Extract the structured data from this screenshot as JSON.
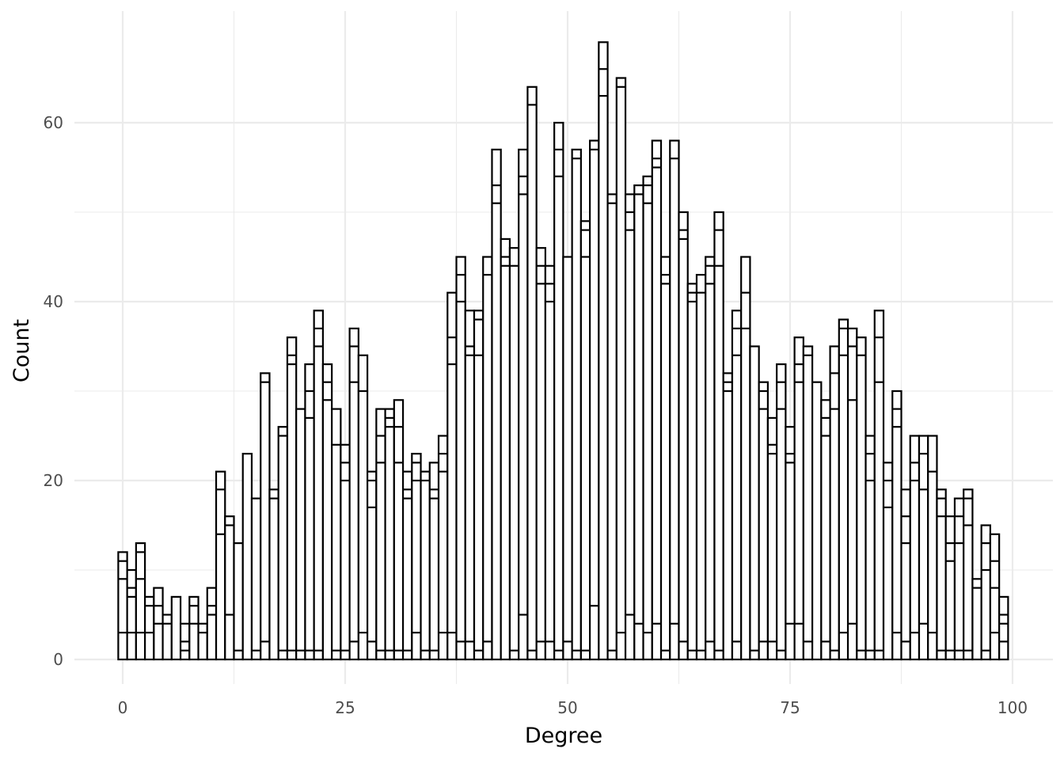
{
  "chart_data": {
    "type": "bar",
    "subtype": "stacked histogram, white fill with black outlines, one stacked bar per degree",
    "title": "",
    "xlabel": "Degree",
    "ylabel": "Count",
    "xlim": [
      -5,
      105
    ],
    "ylim": [
      -3.1,
      70
    ],
    "x_ticks": [
      0,
      25,
      50,
      75,
      100
    ],
    "x_tick_labels": [
      "0",
      "25",
      "50",
      "75",
      "100"
    ],
    "y_ticks": [
      0,
      20,
      40,
      60
    ],
    "y_tick_labels": [
      "0",
      "20",
      "40",
      "60"
    ],
    "grid": true,
    "legend": "none",
    "colors": {
      "fill": "#ffffff",
      "outline": "#000000",
      "grid": "#ebebeb"
    },
    "bars": [
      {
        "x": 0,
        "layers": [
          3,
          9,
          11,
          12
        ]
      },
      {
        "x": 1,
        "layers": [
          3,
          7,
          8,
          10
        ]
      },
      {
        "x": 2,
        "layers": [
          3,
          9,
          12,
          13
        ]
      },
      {
        "x": 3,
        "layers": [
          3,
          6,
          7
        ]
      },
      {
        "x": 4,
        "layers": [
          4,
          6,
          8
        ]
      },
      {
        "x": 5,
        "layers": [
          4,
          5
        ]
      },
      {
        "x": 6,
        "layers": [
          7
        ]
      },
      {
        "x": 7,
        "layers": [
          1,
          2,
          4
        ]
      },
      {
        "x": 8,
        "layers": [
          4,
          6,
          7
        ]
      },
      {
        "x": 9,
        "layers": [
          3,
          4
        ]
      },
      {
        "x": 10,
        "layers": [
          5,
          6,
          8
        ]
      },
      {
        "x": 11,
        "layers": [
          14,
          19,
          21
        ]
      },
      {
        "x": 12,
        "layers": [
          5,
          15,
          16
        ]
      },
      {
        "x": 13,
        "layers": [
          1,
          13
        ]
      },
      {
        "x": 14,
        "layers": [
          23
        ]
      },
      {
        "x": 15,
        "layers": [
          1,
          18
        ]
      },
      {
        "x": 16,
        "layers": [
          2,
          31,
          32
        ]
      },
      {
        "x": 17,
        "layers": [
          18,
          19
        ]
      },
      {
        "x": 18,
        "layers": [
          1,
          25,
          26
        ]
      },
      {
        "x": 19,
        "layers": [
          1,
          33,
          34,
          36
        ]
      },
      {
        "x": 20,
        "layers": [
          1,
          28
        ]
      },
      {
        "x": 21,
        "layers": [
          1,
          27,
          30,
          33
        ]
      },
      {
        "x": 22,
        "layers": [
          1,
          35,
          37,
          39
        ]
      },
      {
        "x": 23,
        "layers": [
          29,
          31,
          33
        ]
      },
      {
        "x": 24,
        "layers": [
          1,
          24,
          28
        ]
      },
      {
        "x": 25,
        "layers": [
          1,
          20,
          22,
          24
        ]
      },
      {
        "x": 26,
        "layers": [
          2,
          31,
          35,
          37
        ]
      },
      {
        "x": 27,
        "layers": [
          3,
          30,
          34
        ]
      },
      {
        "x": 28,
        "layers": [
          2,
          17,
          20,
          21
        ]
      },
      {
        "x": 29,
        "layers": [
          1,
          22,
          25,
          28
        ]
      },
      {
        "x": 30,
        "layers": [
          1,
          26,
          27,
          28
        ]
      },
      {
        "x": 31,
        "layers": [
          1,
          22,
          26,
          29
        ]
      },
      {
        "x": 32,
        "layers": [
          1,
          18,
          19,
          21
        ]
      },
      {
        "x": 33,
        "layers": [
          3,
          20,
          22,
          23
        ]
      },
      {
        "x": 34,
        "layers": [
          1,
          20,
          21
        ]
      },
      {
        "x": 35,
        "layers": [
          1,
          18,
          19,
          22
        ]
      },
      {
        "x": 36,
        "layers": [
          3,
          21,
          23,
          25
        ]
      },
      {
        "x": 37,
        "layers": [
          3,
          33,
          36,
          41
        ]
      },
      {
        "x": 38,
        "layers": [
          2,
          40,
          43,
          45
        ]
      },
      {
        "x": 39,
        "layers": [
          2,
          34,
          35,
          39
        ]
      },
      {
        "x": 40,
        "layers": [
          1,
          34,
          38,
          39
        ]
      },
      {
        "x": 41,
        "layers": [
          2,
          43,
          45
        ]
      },
      {
        "x": 42,
        "layers": [
          51,
          53,
          57
        ]
      },
      {
        "x": 43,
        "layers": [
          44,
          45,
          47
        ]
      },
      {
        "x": 44,
        "layers": [
          1,
          44,
          46
        ]
      },
      {
        "x": 45,
        "layers": [
          5,
          52,
          54,
          57
        ]
      },
      {
        "x": 46,
        "layers": [
          1,
          62,
          64
        ]
      },
      {
        "x": 47,
        "layers": [
          2,
          42,
          44,
          46
        ]
      },
      {
        "x": 48,
        "layers": [
          2,
          40,
          42,
          44
        ]
      },
      {
        "x": 49,
        "layers": [
          1,
          54,
          57,
          60
        ]
      },
      {
        "x": 50,
        "layers": [
          2,
          45
        ]
      },
      {
        "x": 51,
        "layers": [
          1,
          56,
          57
        ]
      },
      {
        "x": 52,
        "layers": [
          1,
          45,
          48,
          49
        ]
      },
      {
        "x": 53,
        "layers": [
          6,
          57,
          58
        ]
      },
      {
        "x": 54,
        "layers": [
          63,
          66,
          69
        ]
      },
      {
        "x": 55,
        "layers": [
          1,
          51,
          52
        ]
      },
      {
        "x": 56,
        "layers": [
          3,
          64,
          65
        ]
      },
      {
        "x": 57,
        "layers": [
          5,
          48,
          50,
          52
        ]
      },
      {
        "x": 58,
        "layers": [
          4,
          52,
          53
        ]
      },
      {
        "x": 59,
        "layers": [
          3,
          51,
          53,
          54
        ]
      },
      {
        "x": 60,
        "layers": [
          4,
          55,
          56,
          58
        ]
      },
      {
        "x": 61,
        "layers": [
          1,
          42,
          43,
          45
        ]
      },
      {
        "x": 62,
        "layers": [
          4,
          56,
          58
        ]
      },
      {
        "x": 63,
        "layers": [
          2,
          47,
          48,
          50
        ]
      },
      {
        "x": 64,
        "layers": [
          1,
          40,
          41,
          42
        ]
      },
      {
        "x": 65,
        "layers": [
          1,
          41,
          43
        ]
      },
      {
        "x": 66,
        "layers": [
          2,
          42,
          44,
          45
        ]
      },
      {
        "x": 67,
        "layers": [
          1,
          44,
          48,
          50
        ]
      },
      {
        "x": 68,
        "layers": [
          30,
          31,
          32
        ]
      },
      {
        "x": 69,
        "layers": [
          2,
          34,
          37,
          39
        ]
      },
      {
        "x": 70,
        "layers": [
          37,
          41,
          45
        ]
      },
      {
        "x": 71,
        "layers": [
          1,
          35
        ]
      },
      {
        "x": 72,
        "layers": [
          2,
          28,
          30,
          31
        ]
      },
      {
        "x": 73,
        "layers": [
          2,
          23,
          24,
          27
        ]
      },
      {
        "x": 74,
        "layers": [
          1,
          28,
          31,
          33
        ]
      },
      {
        "x": 75,
        "layers": [
          4,
          22,
          23,
          26
        ]
      },
      {
        "x": 76,
        "layers": [
          4,
          31,
          33,
          36
        ]
      },
      {
        "x": 77,
        "layers": [
          2,
          34,
          35
        ]
      },
      {
        "x": 78,
        "layers": [
          31
        ]
      },
      {
        "x": 79,
        "layers": [
          2,
          25,
          27,
          29
        ]
      },
      {
        "x": 80,
        "layers": [
          1,
          28,
          32,
          35
        ]
      },
      {
        "x": 81,
        "layers": [
          3,
          34,
          37,
          38
        ]
      },
      {
        "x": 82,
        "layers": [
          4,
          29,
          35,
          37
        ]
      },
      {
        "x": 83,
        "layers": [
          1,
          34,
          36
        ]
      },
      {
        "x": 84,
        "layers": [
          1,
          20,
          23,
          25
        ]
      },
      {
        "x": 85,
        "layers": [
          1,
          31,
          36,
          39
        ]
      },
      {
        "x": 86,
        "layers": [
          17,
          20,
          22
        ]
      },
      {
        "x": 87,
        "layers": [
          3,
          26,
          28,
          30
        ]
      },
      {
        "x": 88,
        "layers": [
          2,
          13,
          16,
          19
        ]
      },
      {
        "x": 89,
        "layers": [
          3,
          20,
          22,
          25
        ]
      },
      {
        "x": 90,
        "layers": [
          4,
          19,
          23,
          25
        ]
      },
      {
        "x": 91,
        "layers": [
          3,
          21,
          25
        ]
      },
      {
        "x": 92,
        "layers": [
          1,
          16,
          18,
          19
        ]
      },
      {
        "x": 93,
        "layers": [
          1,
          11,
          13,
          16
        ]
      },
      {
        "x": 94,
        "layers": [
          1,
          13,
          16,
          18
        ]
      },
      {
        "x": 95,
        "layers": [
          1,
          15,
          18,
          19
        ]
      },
      {
        "x": 96,
        "layers": [
          8,
          9
        ]
      },
      {
        "x": 97,
        "layers": [
          1,
          10,
          13,
          15
        ]
      },
      {
        "x": 98,
        "layers": [
          3,
          8,
          11,
          14
        ]
      },
      {
        "x": 99,
        "layers": [
          2,
          4,
          5,
          7
        ]
      }
    ]
  }
}
